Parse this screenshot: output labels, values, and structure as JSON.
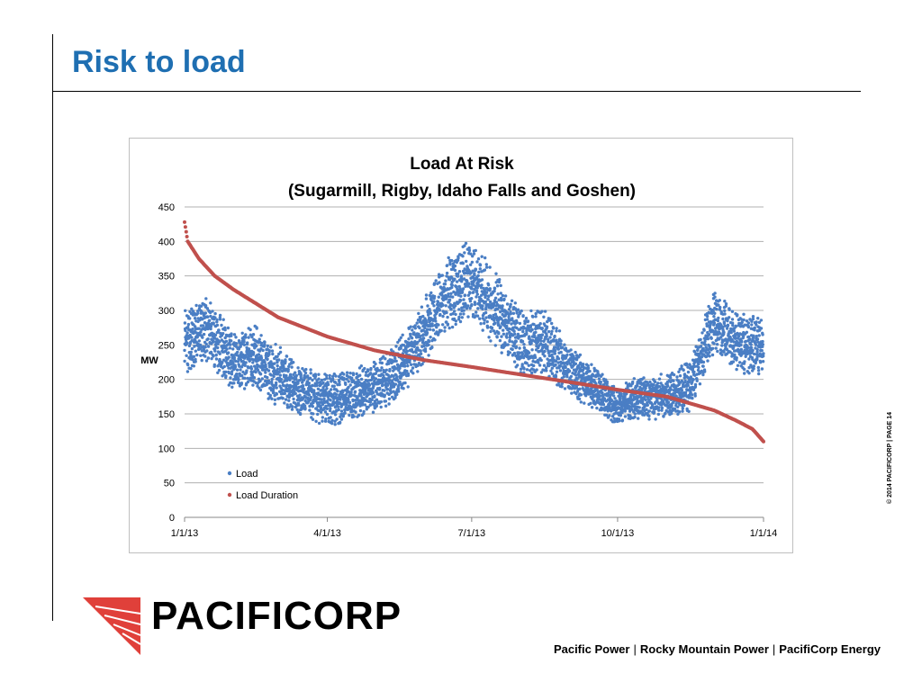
{
  "slide": {
    "title": "Risk to load",
    "copyright": "© 2014 PACIFICORP | PAGE 14",
    "logo_text": "PACIFICORP",
    "footer": {
      "brands": [
        "Pacific Power",
        "Rocky Mountain Power",
        "PacifiCorp Energy"
      ],
      "separator": "|"
    }
  },
  "colors": {
    "title": "#1f6fb2",
    "load": "#4a7ec4",
    "duration": "#c0504d",
    "logo_red": "#e0403a",
    "grid": "#b0b0b0"
  },
  "chart_data": {
    "type": "scatter",
    "title": "Load At Risk",
    "subtitle": "(Sugarmill, Rigby, Idaho Falls and Goshen)",
    "ylabel": "MW",
    "xlabel": "",
    "ylim": [
      0,
      450
    ],
    "yticks": [
      0,
      50,
      100,
      150,
      200,
      250,
      300,
      350,
      400,
      450
    ],
    "xlim": [
      "2013-01-01",
      "2014-01-01"
    ],
    "xticks": [
      "1/1/13",
      "4/1/13",
      "7/1/13",
      "10/1/13",
      "1/1/14"
    ],
    "grid": true,
    "legend": {
      "position": "bottom-left",
      "entries": [
        "Load",
        "Load Duration"
      ]
    },
    "series": [
      {
        "name": "Load",
        "marker": "dot",
        "x_dates": [
          "2013-01-01",
          "2013-01-15",
          "2013-02-01",
          "2013-02-15",
          "2013-03-01",
          "2013-03-15",
          "2013-04-01",
          "2013-04-15",
          "2013-05-01",
          "2013-05-15",
          "2013-06-01",
          "2013-06-15",
          "2013-07-01",
          "2013-07-15",
          "2013-08-01",
          "2013-08-15",
          "2013-09-01",
          "2013-09-15",
          "2013-10-01",
          "2013-10-15",
          "2013-11-01",
          "2013-11-15",
          "2013-12-01",
          "2013-12-15",
          "2014-01-01"
        ],
        "y_center": [
          255,
          275,
          225,
          230,
          205,
          185,
          170,
          175,
          190,
          210,
          270,
          320,
          345,
          305,
          255,
          255,
          215,
          190,
          160,
          175,
          175,
          190,
          285,
          255,
          245
        ],
        "y_spread": [
          45,
          45,
          40,
          45,
          40,
          35,
          35,
          35,
          35,
          40,
          45,
          50,
          55,
          50,
          45,
          45,
          35,
          30,
          25,
          30,
          30,
          35,
          40,
          40,
          40
        ]
      },
      {
        "name": "Load Duration",
        "marker": "dot",
        "x_dates": [
          "2013-01-01",
          "2013-01-03",
          "2013-01-10",
          "2013-01-20",
          "2013-02-01",
          "2013-03-01",
          "2013-04-01",
          "2013-05-01",
          "2013-06-01",
          "2013-07-01",
          "2013-08-01",
          "2013-09-01",
          "2013-10-01",
          "2013-11-01",
          "2013-12-01",
          "2013-12-15",
          "2013-12-25",
          "2014-01-01"
        ],
        "values": [
          428,
          400,
          375,
          350,
          330,
          290,
          262,
          242,
          228,
          218,
          207,
          196,
          185,
          175,
          155,
          140,
          128,
          110
        ]
      }
    ]
  }
}
